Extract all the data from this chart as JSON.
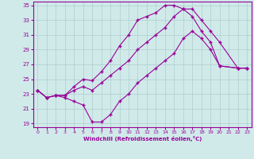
{
  "xlabel": "Windchill (Refroidissement éolien,°C)",
  "xlim": [
    -0.5,
    23.5
  ],
  "ylim": [
    18.5,
    35.5
  ],
  "yticks": [
    19,
    21,
    23,
    25,
    27,
    29,
    31,
    33,
    35
  ],
  "xticks": [
    0,
    1,
    2,
    3,
    4,
    5,
    6,
    7,
    8,
    9,
    10,
    11,
    12,
    13,
    14,
    15,
    16,
    17,
    18,
    19,
    20,
    21,
    22,
    23
  ],
  "bg_color": "#d0eaea",
  "line_color": "#990099",
  "grid_color": "#b0cccc",
  "line1_x": [
    0,
    1,
    2,
    3,
    4,
    5,
    6,
    7,
    8,
    9,
    10,
    11,
    12,
    13,
    14,
    15,
    16,
    17,
    18,
    19,
    20,
    22,
    23
  ],
  "line1_y": [
    23.5,
    22.5,
    22.8,
    22.5,
    22.0,
    21.5,
    19.2,
    19.2,
    20.2,
    22.0,
    23.0,
    24.5,
    25.5,
    26.5,
    27.5,
    28.5,
    30.5,
    31.5,
    30.5,
    29.0,
    26.8,
    26.5,
    26.5
  ],
  "line2_x": [
    0,
    1,
    2,
    3,
    4,
    5,
    6,
    7,
    8,
    9,
    10,
    11,
    12,
    13,
    14,
    15,
    16,
    17,
    18,
    19,
    20,
    22,
    23
  ],
  "line2_y": [
    23.5,
    22.5,
    22.8,
    22.8,
    24.0,
    25.0,
    24.8,
    26.0,
    27.5,
    29.5,
    31.0,
    33.0,
    33.5,
    34.0,
    35.0,
    35.0,
    34.5,
    33.5,
    31.5,
    30.0,
    26.8,
    26.5,
    26.5
  ],
  "line3_x": [
    0,
    1,
    2,
    3,
    4,
    5,
    6,
    7,
    8,
    9,
    10,
    11,
    12,
    13,
    14,
    15,
    16,
    17,
    18,
    19,
    20,
    22,
    23
  ],
  "line3_y": [
    23.5,
    22.5,
    22.8,
    22.8,
    23.5,
    24.0,
    23.5,
    24.5,
    25.5,
    26.5,
    27.5,
    29.0,
    30.0,
    31.0,
    32.0,
    33.5,
    34.5,
    34.5,
    33.0,
    31.5,
    30.0,
    26.5,
    26.5
  ]
}
